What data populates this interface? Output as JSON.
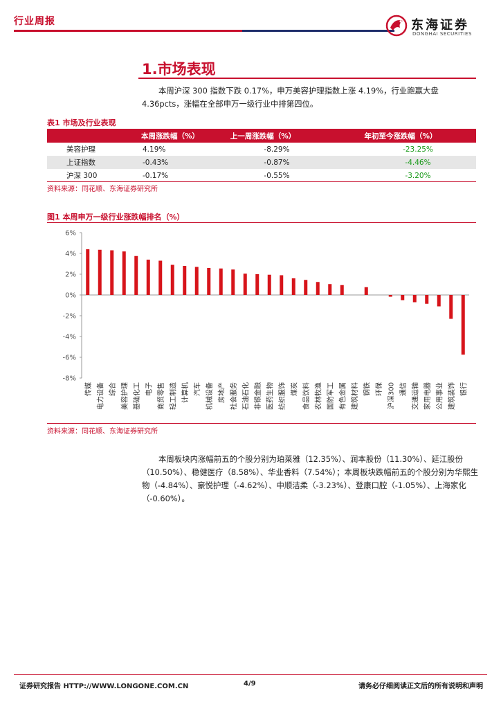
{
  "header": {
    "tag": "行业周报",
    "logo_cn": "东海证券",
    "logo_en": "DONGHAI SECURITIES"
  },
  "section": {
    "title": "1.市场表现",
    "para1": "本周沪深 300 指数下跌 0.17%，申万美容护理指数上涨 4.19%，行业跑赢大盘 4.36pcts，涨幅在全部申万一级行业中排第四位。",
    "para2": "本周板块内涨幅前五的个股分别为珀莱雅（12.35%）、润本股份（11.30%）、延江股份（10.50%）、稳健医疗（8.58%）、华业香料（7.54%）；本周板块跌幅前五的个股分别为华熙生物（-4.84%）、豪悦护理（-4.62%）、中顺洁柔（-3.23%）、登康口腔（-1.05%）、上海家化（-0.60%）。"
  },
  "table": {
    "caption": "表1  市场及行业表现",
    "headers": [
      "",
      "本周涨跌幅（%）",
      "上一周涨跌幅（%）",
      "年初至今涨跌幅（%）"
    ],
    "rows": [
      [
        "美容护理",
        "4.19%",
        "-8.29%",
        "-23.25%"
      ],
      [
        "上证指数",
        "-0.43%",
        "-0.87%",
        "-4.46%"
      ],
      [
        "沪深 300",
        "-0.17%",
        "-0.55%",
        "-3.20%"
      ]
    ],
    "source": "资料来源：同花顺、东海证券研究所"
  },
  "figure": {
    "caption": "图1  本周申万一级行业涨跌幅排名（%）",
    "source": "资料来源：同花顺、东海证券研究所"
  },
  "chart_data": {
    "type": "bar",
    "title": "",
    "xlabel": "",
    "ylabel": "",
    "ylim": [
      -8,
      6
    ],
    "yticks": [
      "6%",
      "4%",
      "2%",
      "0%",
      "-2%",
      "-4%",
      "-6%",
      "-8%"
    ],
    "grid": false,
    "categories": [
      "传媒",
      "电力设备",
      "综合",
      "美容护理",
      "基础化工",
      "电子",
      "商贸零售",
      "轻工制造",
      "计算机",
      "汽车",
      "机械设备",
      "房地产",
      "社会服务",
      "石油石化",
      "非银金融",
      "医药生物",
      "纺织服饰",
      "煤炭",
      "食品饮料",
      "农林牧渔",
      "国防军工",
      "有色金属",
      "建筑材料",
      "钢铁",
      "环保",
      "沪深300",
      "通信",
      "交通运输",
      "家用电器",
      "公用事业",
      "建筑装饰",
      "银行"
    ],
    "values": [
      4.4,
      4.35,
      4.3,
      4.19,
      3.75,
      3.4,
      3.3,
      2.9,
      2.8,
      2.7,
      2.6,
      2.55,
      2.45,
      2.05,
      2.0,
      1.95,
      1.9,
      1.6,
      1.45,
      1.25,
      1.05,
      0.95,
      0.0,
      0.75,
      0.0,
      -0.17,
      -0.5,
      -0.7,
      -0.85,
      -1.1,
      -2.3,
      -5.75
    ],
    "color": "#d7141a"
  },
  "footer": {
    "left": "证券研究报告    HTTP://WWW.LONGONE.COM.CN",
    "page": "4/9",
    "right": "请务必仔细阅读正文后的所有说明和声明"
  }
}
